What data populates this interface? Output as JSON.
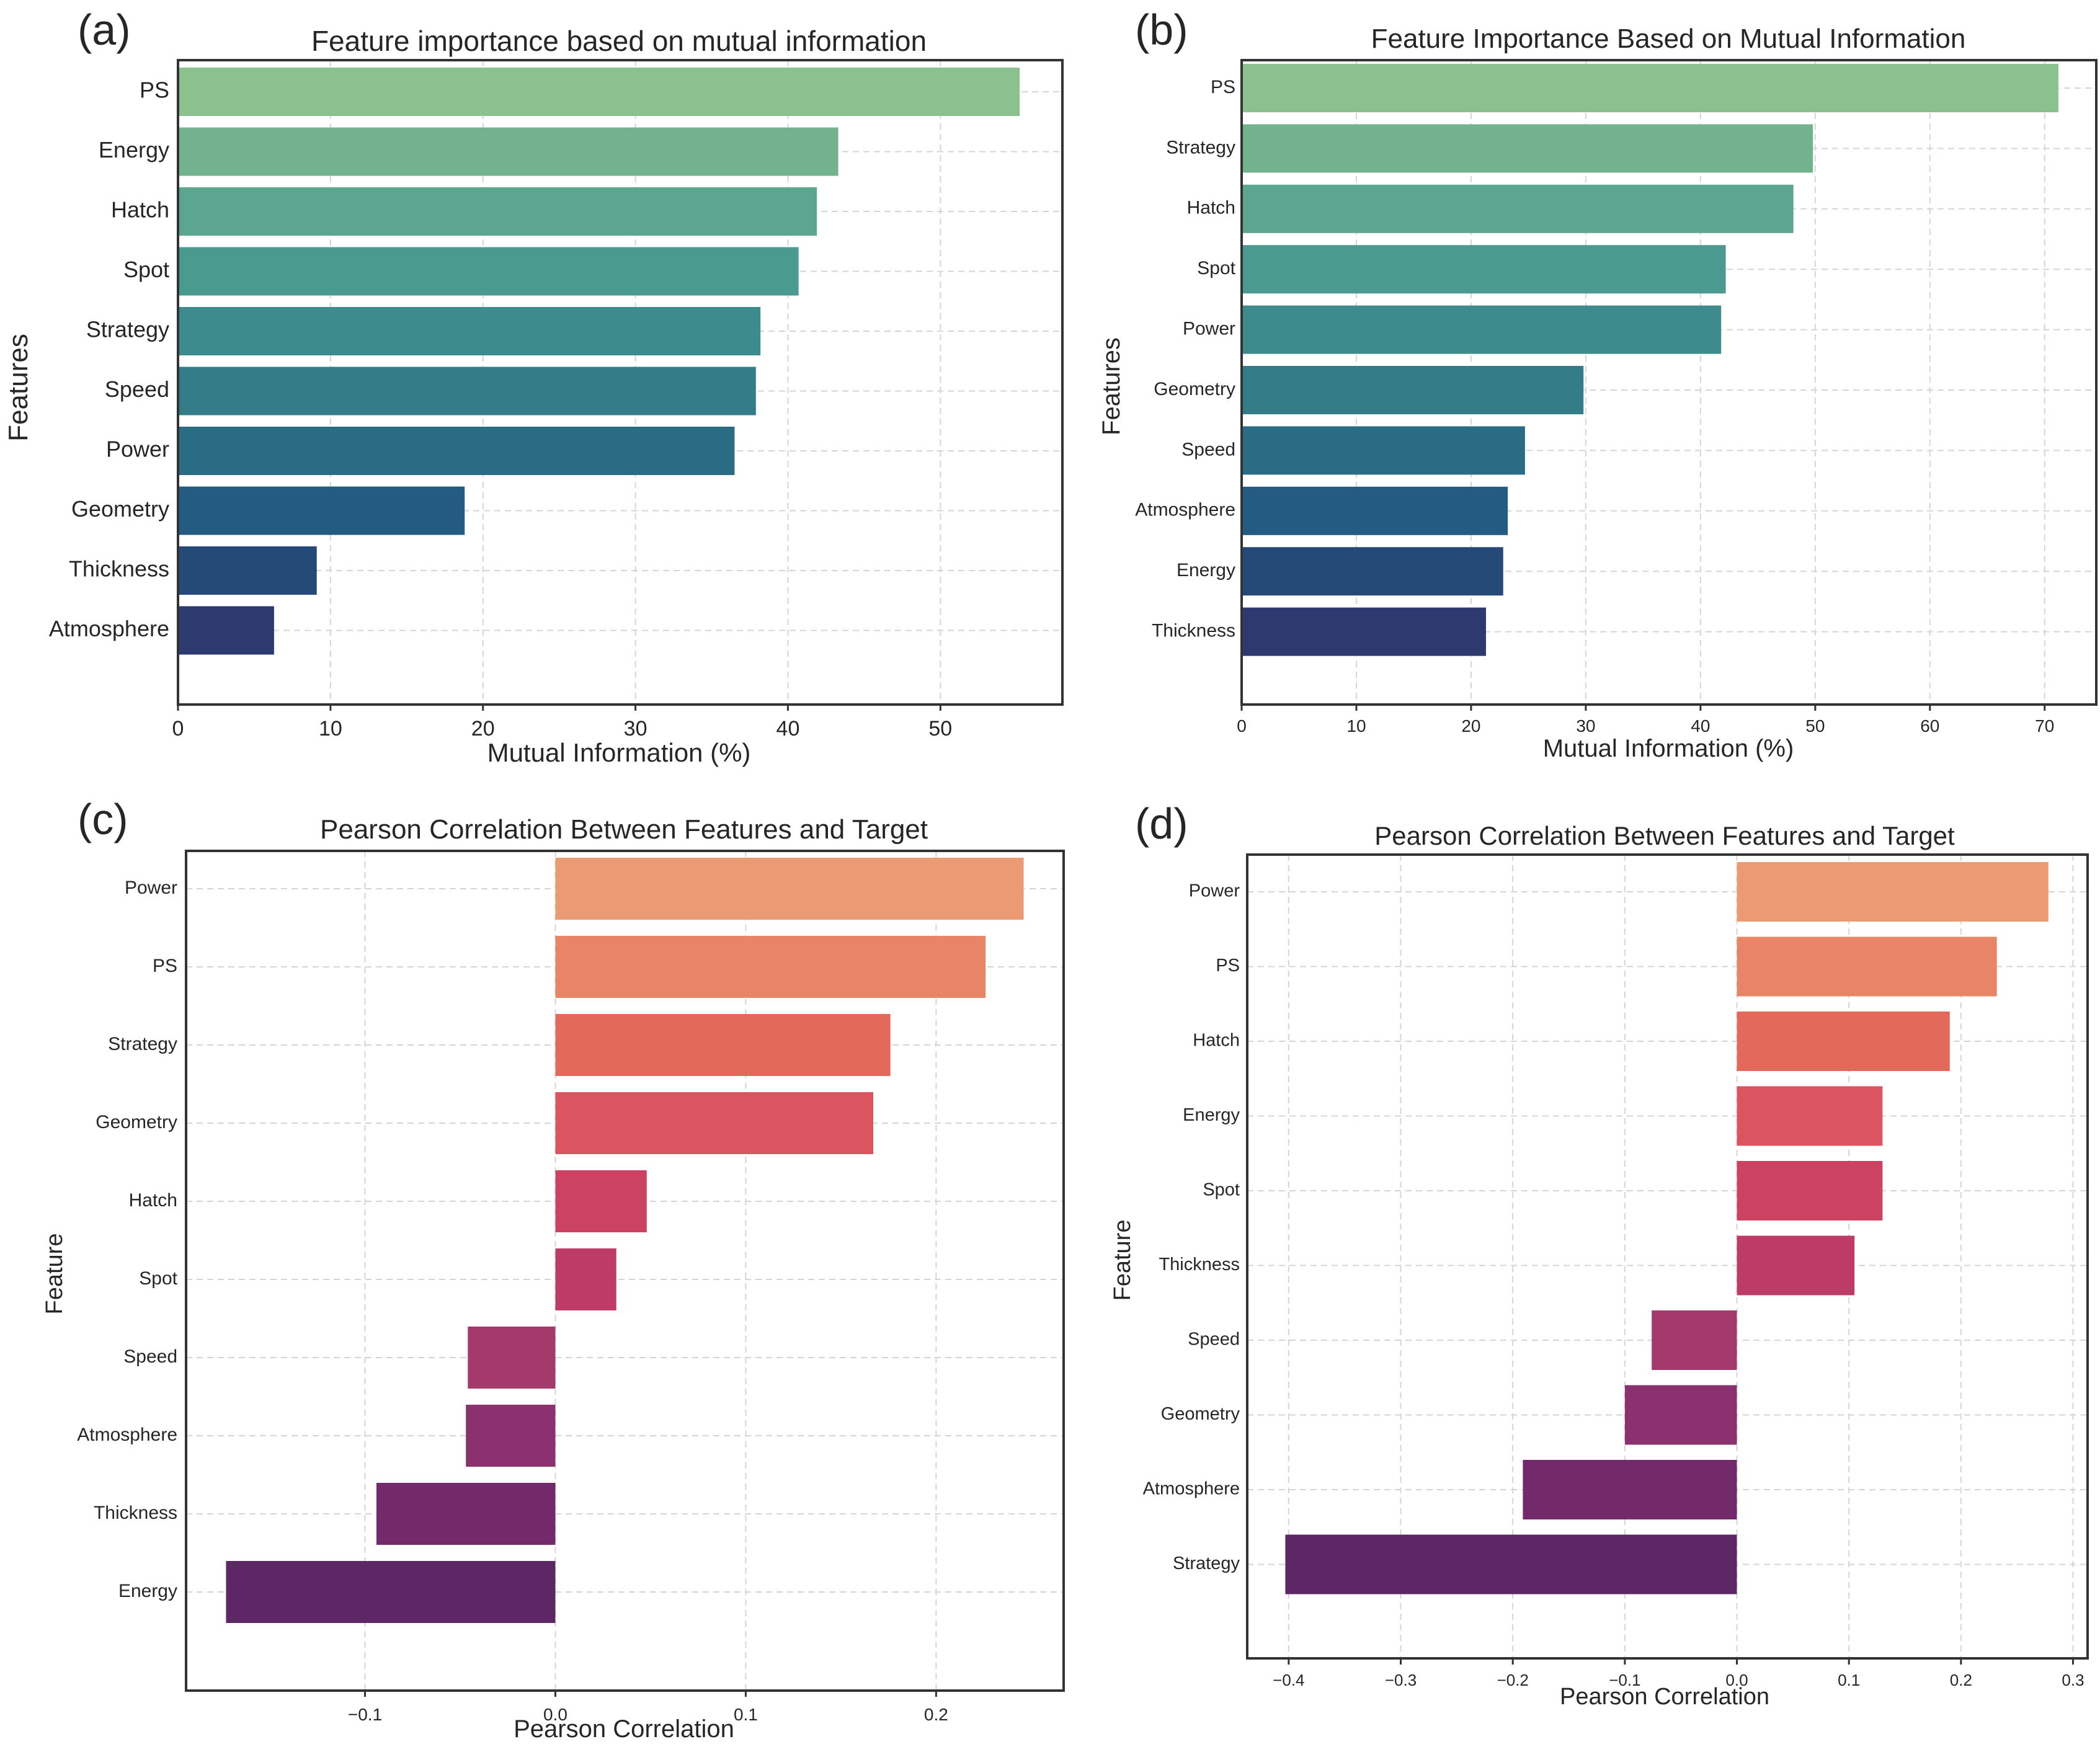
{
  "chart_data": [
    {
      "type": "bar",
      "orientation": "horizontal",
      "panel_label": "(a)",
      "title": "Feature importance based on mutual information",
      "xlabel": "Mutual Information (%)",
      "ylabel": "Features",
      "categories": [
        "PS",
        "Energy",
        "Hatch",
        "Spot",
        "Strategy",
        "Speed",
        "Power",
        "Geometry",
        "Thickness",
        "Atmosphere"
      ],
      "values": [
        55.2,
        43.3,
        41.9,
        40.7,
        38.2,
        37.9,
        36.5,
        18.8,
        9.1,
        6.3
      ],
      "xticks": [
        0,
        10,
        20,
        30,
        40,
        50
      ],
      "xlim": [
        0,
        58
      ],
      "grid": true,
      "colors": [
        "#8bc08f",
        "#72b38e",
        "#5ca690",
        "#4a9a8f",
        "#3d8b8c",
        "#337c88",
        "#2b6c85",
        "#245b80",
        "#264a78",
        "#2c3a70"
      ]
    },
    {
      "type": "bar",
      "orientation": "horizontal",
      "panel_label": "(b)",
      "title": "Feature Importance Based on Mutual Information",
      "xlabel": "Mutual Information (%)",
      "ylabel": "Features",
      "categories": [
        "PS",
        "Strategy",
        "Hatch",
        "Spot",
        "Power",
        "Geometry",
        "Speed",
        "Atmosphere",
        "Energy",
        "Thickness"
      ],
      "values": [
        71.2,
        49.8,
        48.1,
        42.2,
        41.8,
        29.8,
        24.7,
        23.2,
        22.8,
        21.3
      ],
      "xticks": [
        0,
        10,
        20,
        30,
        40,
        50,
        60,
        70
      ],
      "xlim": [
        0,
        74.5
      ],
      "grid": true,
      "colors": [
        "#8bc08f",
        "#72b38e",
        "#5ca690",
        "#4a9a8f",
        "#3d8b8c",
        "#337c88",
        "#2b6c85",
        "#245b80",
        "#264a78",
        "#2c3a70"
      ]
    },
    {
      "type": "bar",
      "orientation": "horizontal",
      "panel_label": "(c)",
      "title": "Pearson Correlation Between Features and Target",
      "xlabel": "Pearson Correlation",
      "ylabel": "Feature",
      "categories": [
        "Power",
        "PS",
        "Strategy",
        "Geometry",
        "Hatch",
        "Spot",
        "Speed",
        "Atmosphere",
        "Thickness",
        "Energy"
      ],
      "values": [
        0.246,
        0.226,
        0.176,
        0.167,
        0.048,
        0.032,
        -0.046,
        -0.047,
        -0.094,
        -0.173
      ],
      "xticks": [
        -0.1,
        0.0,
        0.1,
        0.2
      ],
      "xtick_labels": [
        "−0.1",
        "0.0",
        "0.1",
        "0.2"
      ],
      "xlim": [
        -0.194,
        0.267
      ],
      "grid": true,
      "colors": [
        "#eb9a73",
        "#e88566",
        "#e36a5b",
        "#db5560",
        "#cc4262",
        "#bd3b67",
        "#a43a6c",
        "#8c3170",
        "#722a6a",
        "#5d2765"
      ]
    },
    {
      "type": "bar",
      "orientation": "horizontal",
      "panel_label": "(d)",
      "title": "Pearson Correlation Between Features and Target",
      "xlabel": "Pearson Correlation",
      "ylabel": "Feature",
      "categories": [
        "Power",
        "PS",
        "Hatch",
        "Energy",
        "Spot",
        "Thickness",
        "Speed",
        "Geometry",
        "Atmosphere",
        "Strategy"
      ],
      "values": [
        0.278,
        0.232,
        0.19,
        0.13,
        0.13,
        0.105,
        -0.076,
        -0.1,
        -0.191,
        -0.403
      ],
      "xticks": [
        -0.4,
        -0.3,
        -0.2,
        -0.1,
        0.0,
        0.1,
        0.2,
        0.3
      ],
      "xtick_labels": [
        "−0.4",
        "−0.3",
        "−0.2",
        "−0.1",
        "0.0",
        "0.1",
        "0.2",
        "0.3"
      ],
      "xlim": [
        -0.437,
        0.313
      ],
      "grid": true,
      "colors": [
        "#eb9a73",
        "#e88566",
        "#e36a5b",
        "#db5560",
        "#cc4262",
        "#bd3b67",
        "#a43a6c",
        "#8c3170",
        "#722a6a",
        "#5d2765"
      ]
    }
  ]
}
